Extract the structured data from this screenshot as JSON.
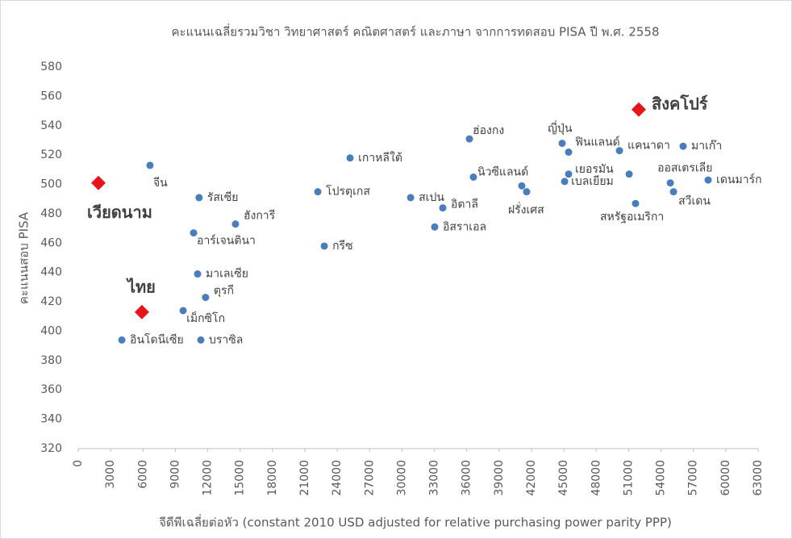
{
  "chart_data": {
    "type": "scatter",
    "title": "คะแนนเฉลี่ยรวมวิชา วิทยาศาสตร์ คณิตศาสตร์ และภาษา จากการทดสอบ PISA ปี พ.ศ. 2558",
    "x_label": "จีดีพีเฉลี่ยต่อหัว (constant 2010 USD adjusted for relative purchasing power parity PPP)",
    "y_label": "คะแนนสอบ PISA",
    "xlim": [
      0,
      63000
    ],
    "xticks": [
      0,
      3000,
      6000,
      9000,
      12000,
      15000,
      18000,
      21000,
      24000,
      27000,
      30000,
      33000,
      36000,
      39000,
      42000,
      45000,
      48000,
      51000,
      54000,
      57000,
      60000,
      63000
    ],
    "ylim": [
      320,
      580
    ],
    "yticks": [
      320,
      340,
      360,
      380,
      400,
      420,
      440,
      460,
      480,
      500,
      520,
      540,
      560,
      580
    ],
    "series": [
      {
        "color": "#4a7ebb",
        "marker": "circle",
        "x": [
          6650,
          11200,
          14570,
          10690,
          11060,
          11800,
          9720,
          4040,
          11360,
          22200,
          22800,
          25190,
          30800,
          33780,
          33030,
          36250,
          36620,
          41100,
          41550,
          44840,
          45440,
          45440,
          45070,
          50150,
          51050,
          51640,
          54860,
          55160,
          56050,
          58370
        ],
        "values": [
          513,
          491,
          473,
          467,
          439,
          423,
          414,
          394,
          394,
          495,
          458,
          518,
          491,
          484,
          471,
          531,
          505,
          499,
          495,
          528,
          522,
          507,
          502,
          523,
          507,
          487,
          501,
          495,
          526,
          503
        ],
        "labels": [
          "จีน",
          "รัสเซีย",
          "ฮังการี",
          "อาร์เจนตินา",
          "มาเลเซีย",
          "ตุรกี",
          "เม็กซิโก",
          "อินโดนีเซีย",
          "บราซิล",
          "โปรตุเกส",
          "กรีซ",
          "เกาหลีใต้",
          "สเปน",
          "อิตาลี",
          "อิสราเอล",
          "ฮ่องกง",
          "นิวซีแลนด์",
          "ฝรั่งเศส",
          null,
          "ญี่ปุ่น",
          "ฟินแลนด์",
          "เยอรมัน",
          "เบลเยียม",
          "แคนาดา",
          null,
          "สหรัฐอเมริกา",
          "ออสเตรเลีย",
          "สวีเดน",
          "มาเก๊า",
          "เดนมาร์ก"
        ]
      },
      {
        "color": "#e8141b",
        "marker": "diamond",
        "x": [
          1870,
          5900,
          51940
        ],
        "values": [
          501,
          413,
          551
        ],
        "labels": [
          "เวียดนาม",
          "ไทย",
          "สิงคโปร์"
        ]
      }
    ]
  }
}
